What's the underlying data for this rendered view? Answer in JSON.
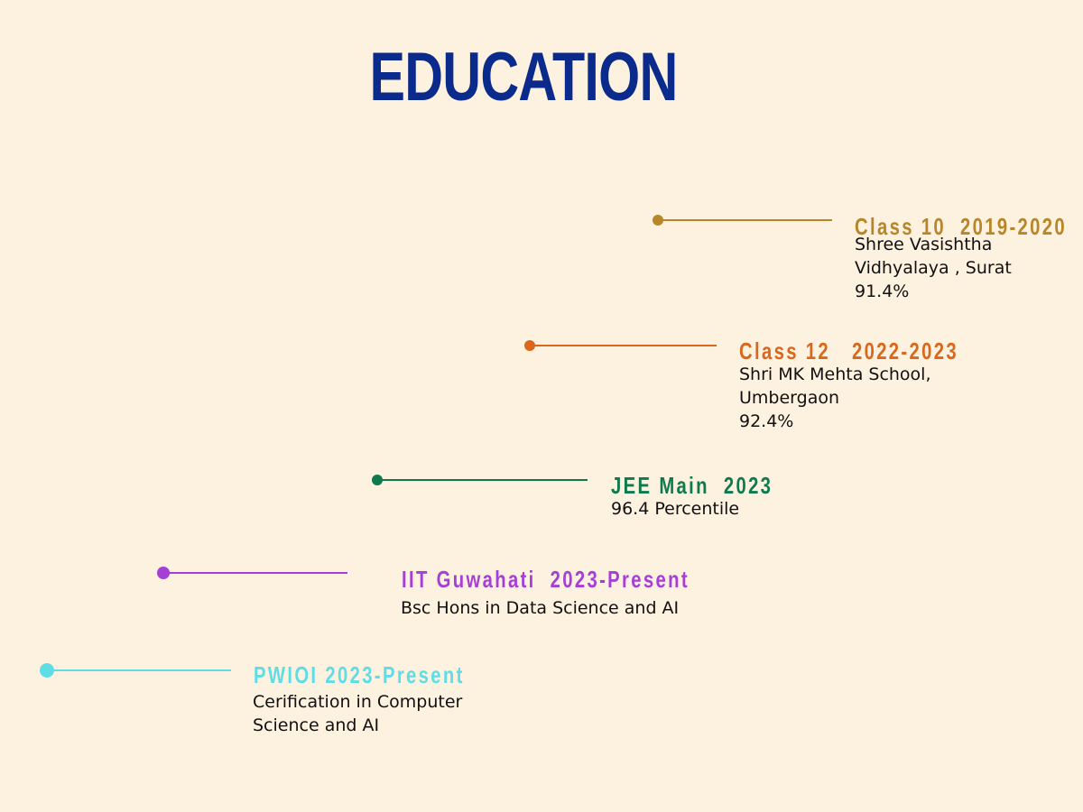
{
  "title": "EDUCATION",
  "colors": {
    "background": "#fdf1df",
    "title": "#0a2b8c",
    "class10": "#b8862a",
    "class12": "#d9681c",
    "jee": "#0e7a4e",
    "iit": "#a63fd6",
    "pwioi": "#5fdde6"
  },
  "timeline": [
    {
      "heading": "Class 10  2019-2020",
      "lines": [
        "Shree Vasishtha",
        "Vidhyalaya , Surat",
        "91.4%"
      ],
      "color": "#b8862a"
    },
    {
      "heading": "Class 12   2022-2023",
      "lines": [
        "Shri MK Mehta School,",
        "Umbergaon",
        "92.4%"
      ],
      "color": "#d9681c"
    },
    {
      "heading": "JEE Main  2023",
      "lines": [
        "96.4 Percentile"
      ],
      "color": "#0e7a4e"
    },
    {
      "heading": "IIT Guwahati  2023-Present",
      "lines": [
        "Bsc Hons in Data Science and AI"
      ],
      "color": "#a63fd6"
    },
    {
      "heading": "PWIOI 2023-Present",
      "lines": [
        "Cerification in Computer",
        "Science and AI"
      ],
      "color": "#5fdde6"
    }
  ]
}
